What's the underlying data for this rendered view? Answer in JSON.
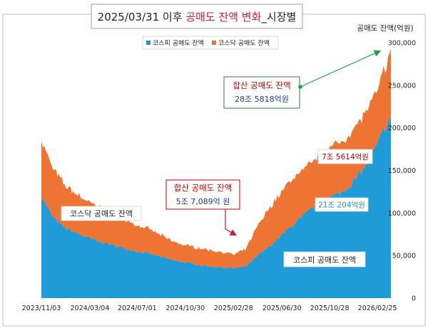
{
  "chart_data": {
    "type": "area",
    "title_parts": [
      "2025/03/31 이후 ",
      "공매도 잔액 변화",
      "_시장별"
    ],
    "y_axis_title": "공매도 잔액(억원)",
    "ylim": [
      0,
      300000
    ],
    "y_ticks": [
      "0",
      "50,000",
      "100,000",
      "150,000",
      "200,000",
      "250,000",
      "300,000"
    ],
    "x_tick_labels": [
      "2023/11/03",
      "2024/03/04",
      "2024/07/01",
      "2024/10/30",
      "2025/02/28",
      "2025/06/30",
      "2025/10/28",
      "2026/02/25"
    ],
    "legend": [
      "코스피 공매도 잔액",
      "코스닥 공매도 잔액"
    ],
    "stacked": true,
    "series": [
      {
        "name": "코스피 공매도 잔액",
        "color": "#1F9CD7",
        "points": [
          [
            "2023/11/03",
            120000
          ],
          [
            "2023/12/01",
            95000
          ],
          [
            "2024/01/02",
            82000
          ],
          [
            "2024/02/01",
            76000
          ],
          [
            "2024/03/04",
            70000
          ],
          [
            "2024/04/01",
            66000
          ],
          [
            "2024/05/02",
            62000
          ],
          [
            "2024/06/03",
            58000
          ],
          [
            "2024/07/01",
            55000
          ],
          [
            "2024/08/01",
            52000
          ],
          [
            "2024/09/02",
            48000
          ],
          [
            "2024/10/02",
            44000
          ],
          [
            "2024/10/30",
            42000
          ],
          [
            "2024/12/02",
            39000
          ],
          [
            "2025/01/02",
            37000
          ],
          [
            "2025/02/03",
            36000
          ],
          [
            "2025/02/28",
            35000
          ],
          [
            "2025/03/31",
            37000
          ],
          [
            "2025/05/01",
            50000
          ],
          [
            "2025/06/02",
            62000
          ],
          [
            "2025/06/30",
            74000
          ],
          [
            "2025/08/01",
            88000
          ],
          [
            "2025/09/01",
            100000
          ],
          [
            "2025/10/01",
            112000
          ],
          [
            "2025/10/28",
            118000
          ],
          [
            "2025/12/01",
            125000
          ],
          [
            "2026/01/02",
            140000
          ],
          [
            "2026/02/02",
            160000
          ],
          [
            "2026/02/25",
            180000
          ],
          [
            "2026/03/16",
            200000
          ],
          [
            "2026/03/31",
            210204
          ]
        ]
      },
      {
        "name": "코스닥 공매도 잔액",
        "color": "#ED7432",
        "points": [
          [
            "2023/11/03",
            65000
          ],
          [
            "2023/12/01",
            58000
          ],
          [
            "2024/01/02",
            50000
          ],
          [
            "2024/02/01",
            46000
          ],
          [
            "2024/03/04",
            42000
          ],
          [
            "2024/04/01",
            40000
          ],
          [
            "2024/05/02",
            36000
          ],
          [
            "2024/06/03",
            33000
          ],
          [
            "2024/07/01",
            30000
          ],
          [
            "2024/08/01",
            29000
          ],
          [
            "2024/09/02",
            25000
          ],
          [
            "2024/10/02",
            22000
          ],
          [
            "2024/10/30",
            20000
          ],
          [
            "2024/12/02",
            20000
          ],
          [
            "2025/01/02",
            19000
          ],
          [
            "2025/02/03",
            18000
          ],
          [
            "2025/02/28",
            16000
          ],
          [
            "2025/03/31",
            20089
          ],
          [
            "2025/05/01",
            36000
          ],
          [
            "2025/06/02",
            46000
          ],
          [
            "2025/06/30",
            52000
          ],
          [
            "2025/08/01",
            55000
          ],
          [
            "2025/09/01",
            54000
          ],
          [
            "2025/10/01",
            56000
          ],
          [
            "2025/10/28",
            58000
          ],
          [
            "2025/12/01",
            60000
          ],
          [
            "2026/01/02",
            62000
          ],
          [
            "2026/02/02",
            63000
          ],
          [
            "2026/02/25",
            62000
          ],
          [
            "2026/03/16",
            72000
          ],
          [
            "2026/03/31",
            75614
          ]
        ]
      }
    ],
    "annotations": {
      "total_peak": {
        "title": "합산 공매도 잔액",
        "value": "28조 5818억원"
      },
      "total_trough": {
        "title": "합산 공매도 잔액",
        "value": "5조 7,089억 원"
      },
      "kosdaq_now": "7조 5614억원",
      "kospi_now": "21조 204억원",
      "kosdaq_label": "코스닥 공매도 잔액",
      "kospi_label": "코스피 공매도 잔액"
    },
    "grid": false,
    "legend_position": "top"
  }
}
